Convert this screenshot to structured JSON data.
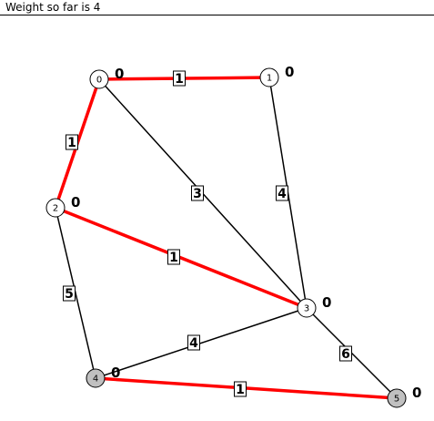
{
  "status": {
    "text": "Weight so far is 4"
  },
  "graph": {
    "colors": {
      "tree_edge": "#ff0000",
      "normal_edge": "#000000",
      "node_fill": "#ffffff",
      "visited_fill": "#c0c0c0",
      "node_stroke": "#000000"
    },
    "nodes": [
      {
        "id": "0",
        "distance": "0",
        "visited": false
      },
      {
        "id": "1",
        "distance": "0",
        "visited": false
      },
      {
        "id": "2",
        "distance": "0",
        "visited": false
      },
      {
        "id": "3",
        "distance": "0",
        "visited": false
      },
      {
        "id": "4",
        "distance": "0",
        "visited": true
      },
      {
        "id": "5",
        "distance": "0",
        "visited": true
      }
    ],
    "edges": [
      {
        "from": "0",
        "to": "1",
        "weight": "1",
        "in_tree": true
      },
      {
        "from": "0",
        "to": "2",
        "weight": "1",
        "in_tree": true
      },
      {
        "from": "0",
        "to": "3",
        "weight": "3",
        "in_tree": false
      },
      {
        "from": "1",
        "to": "3",
        "weight": "4",
        "in_tree": false
      },
      {
        "from": "2",
        "to": "3",
        "weight": "1",
        "in_tree": true
      },
      {
        "from": "2",
        "to": "4",
        "weight": "5",
        "in_tree": false
      },
      {
        "from": "3",
        "to": "4",
        "weight": "4",
        "in_tree": false
      },
      {
        "from": "3",
        "to": "5",
        "weight": "6",
        "in_tree": false
      },
      {
        "from": "4",
        "to": "5",
        "weight": "1",
        "in_tree": true
      }
    ]
  }
}
